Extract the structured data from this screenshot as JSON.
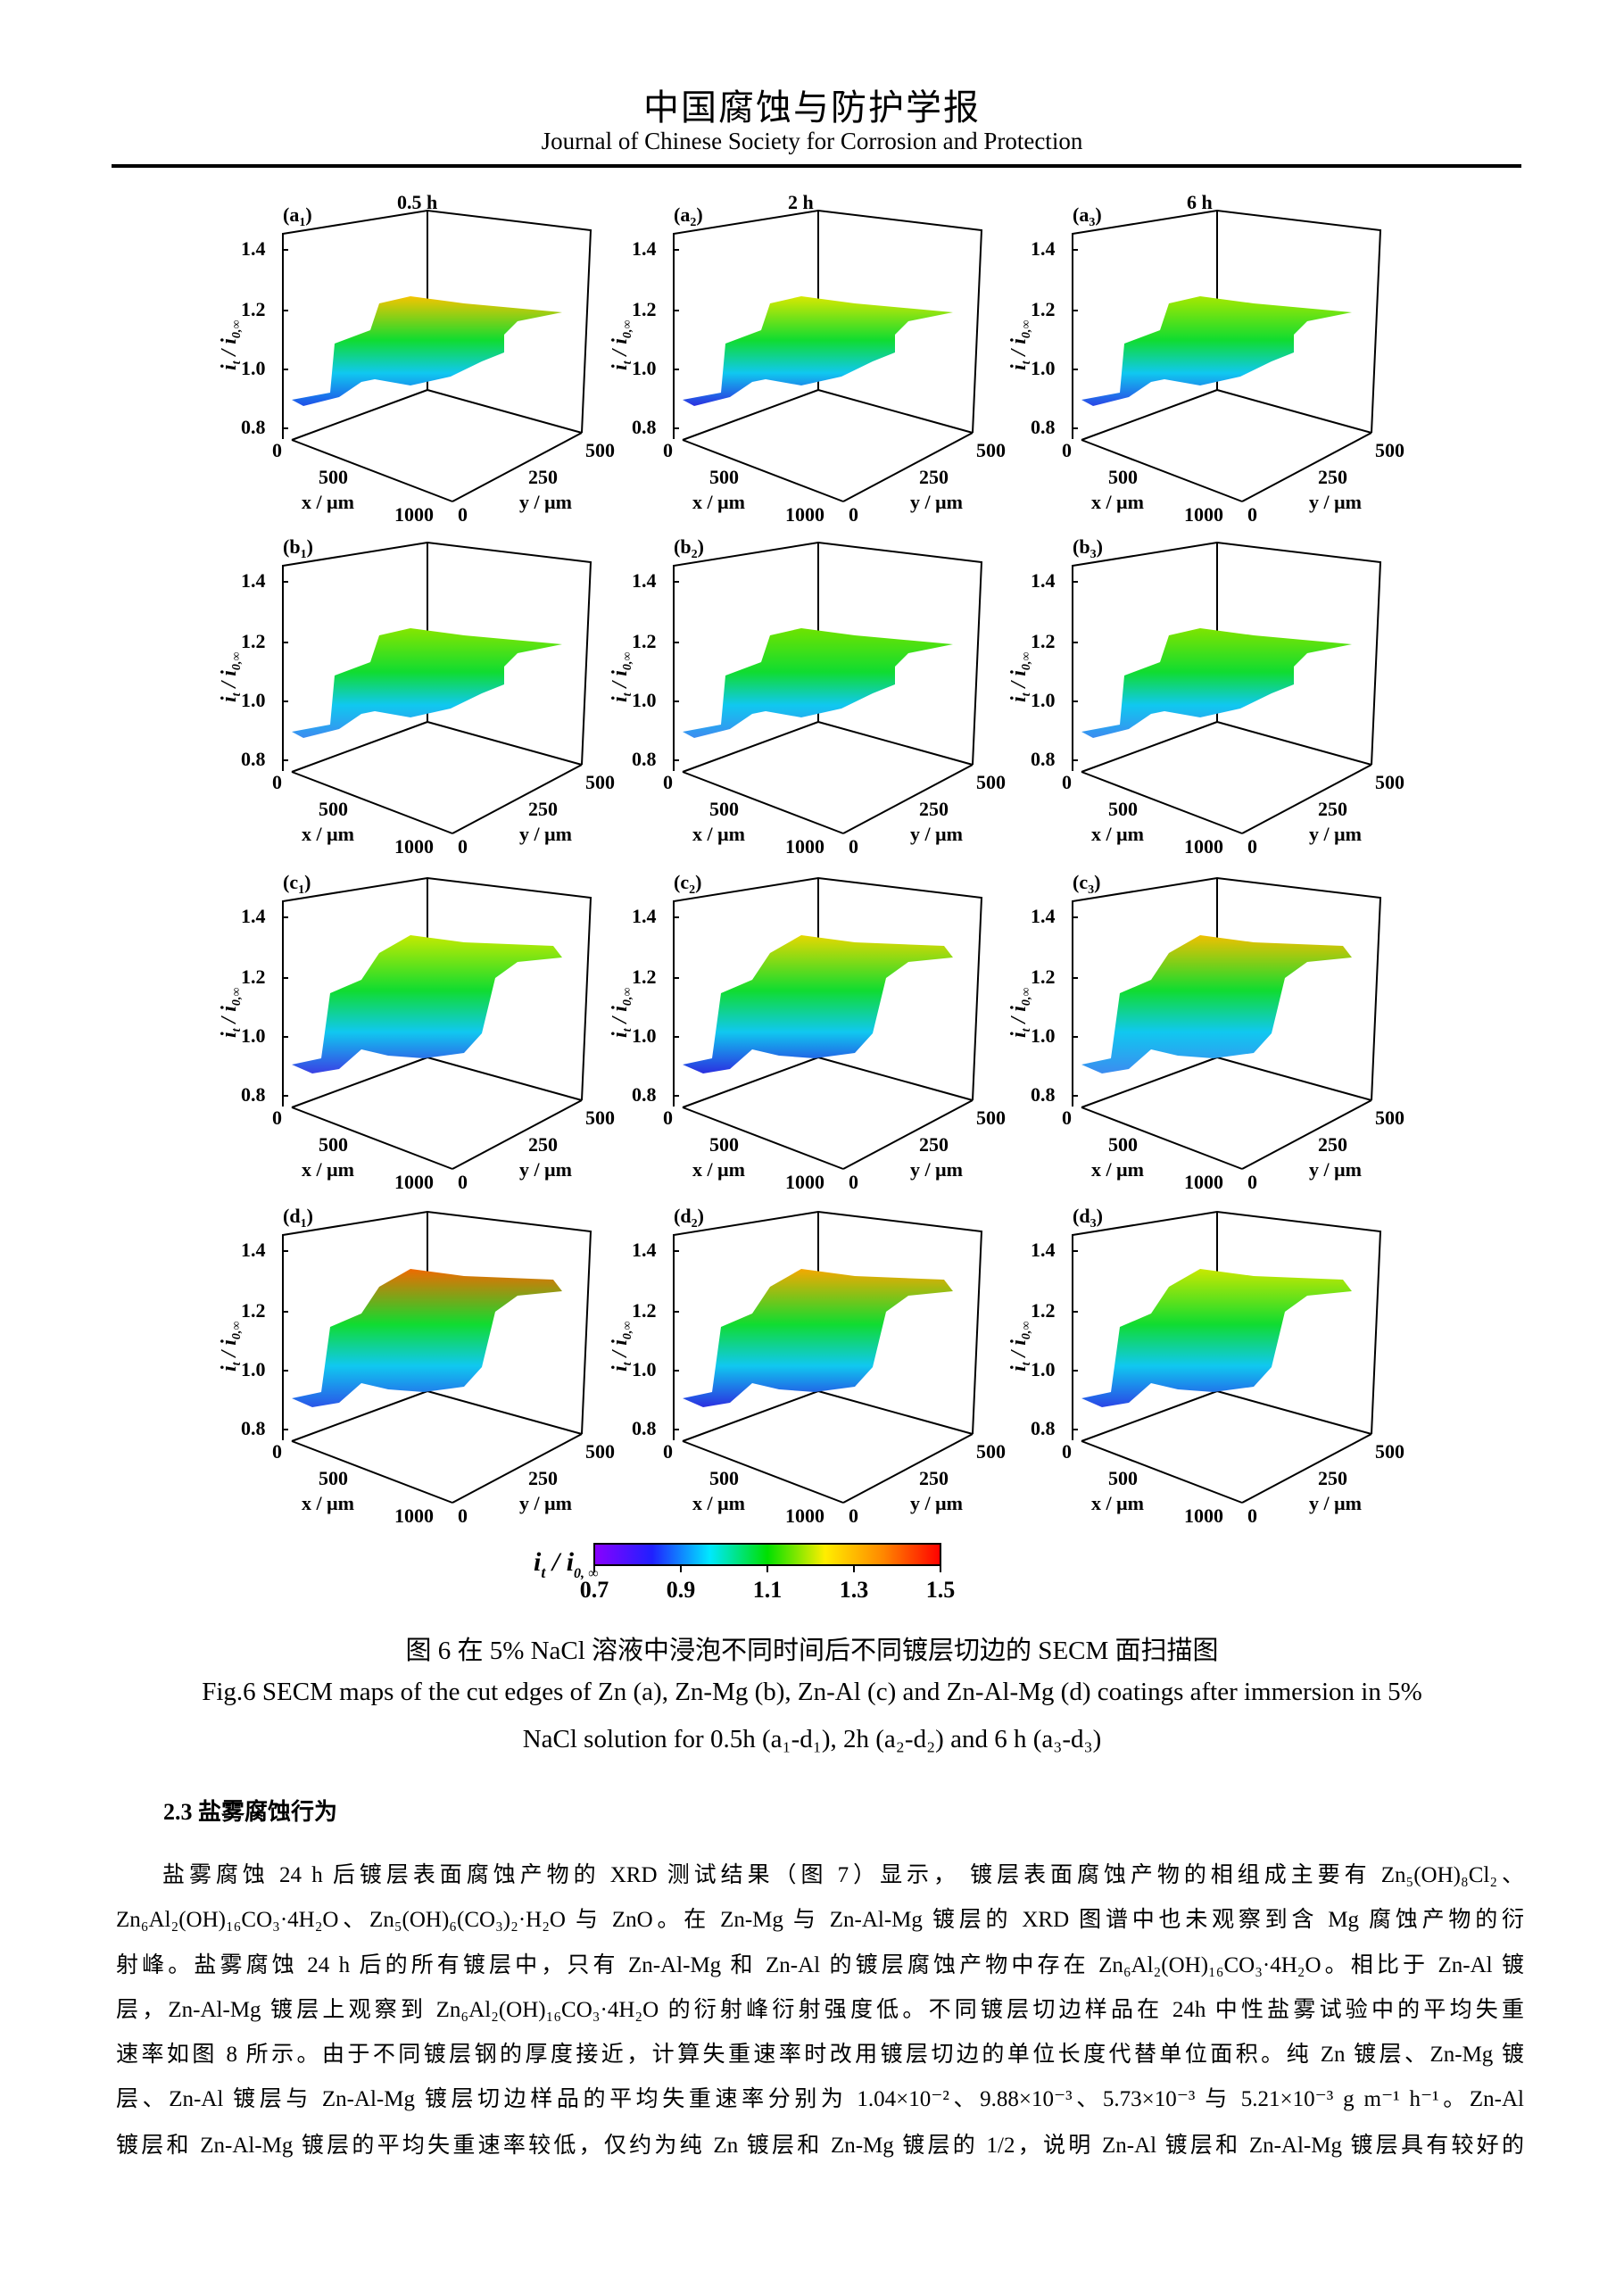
{
  "header": {
    "journal_cn": "中国腐蚀与防护学报",
    "journal_en": "Journal of Chinese Society for Corrosion and Protection"
  },
  "figure": {
    "panels": [
      {
        "label": "(a",
        "sub": "1",
        "time": "0.5 h",
        "peak": "#f5c400",
        "low": "#1f4fe8"
      },
      {
        "label": "(a",
        "sub": "2",
        "time": "2 h",
        "peak": "#d8e800",
        "low": "#2b2fe0"
      },
      {
        "label": "(a",
        "sub": "3",
        "time": "6 h",
        "peak": "#a6e800",
        "low": "#2a45e6"
      },
      {
        "label": "(b",
        "sub": "1",
        "time": "",
        "peak": "#86e600",
        "low": "#3c8cf0"
      },
      {
        "label": "(b",
        "sub": "2",
        "time": "",
        "peak": "#6fe300",
        "low": "#3c8cf0"
      },
      {
        "label": "(b",
        "sub": "3",
        "time": "",
        "peak": "#7fe400",
        "low": "#3c8cf0"
      },
      {
        "label": "(c",
        "sub": "1",
        "time": "",
        "peak": "#c4ea00",
        "low": "#3a40e4"
      },
      {
        "label": "(c",
        "sub": "2",
        "time": "",
        "peak": "#e6d800",
        "low": "#2b2fe0"
      },
      {
        "label": "(c",
        "sub": "3",
        "time": "",
        "peak": "#f0c000",
        "low": "#3c8cf0"
      },
      {
        "label": "(d",
        "sub": "1",
        "time": "",
        "peak": "#f06a00",
        "low": "#2a55e8"
      },
      {
        "label": "(d",
        "sub": "2",
        "time": "",
        "peak": "#f5a800",
        "low": "#2b2fe0"
      },
      {
        "label": "(d",
        "sub": "3",
        "time": "",
        "peak": "#c8e800",
        "low": "#2a45e6"
      }
    ],
    "z_ticks": [
      "1.4",
      "1.2",
      "1.0",
      "0.8"
    ],
    "z_label_main": "i",
    "z_label_sub1": "t",
    "z_label_mid": " / i",
    "z_label_sub2": "0,∞",
    "x_ticks": [
      "0",
      "500",
      "1000"
    ],
    "x_label": "x / μm",
    "y_ticks": [
      "0",
      "250",
      "500"
    ],
    "y_label": "y / μm",
    "colorbar": {
      "label_main": "i",
      "label_sub1": "t",
      "label_mid": " / i",
      "label_sub2": "0, ∞",
      "ticks": [
        "0.7",
        "0.9",
        "1.1",
        "1.3",
        "1.5"
      ],
      "colors": [
        "#8a00ff",
        "#2020ff",
        "#00e8ff",
        "#00e000",
        "#ffee00",
        "#ff8800",
        "#ff0000"
      ]
    },
    "caption_cn": "图 6 在 5% NaCl 溶液中浸泡不同时间后不同镀层切边的 SECM 面扫描图",
    "caption_en_1": "Fig.6 SECM maps of the cut edges of Zn (a), Zn-Mg (b), Zn-Al (c) and Zn-Al-Mg (d) coatings after immersion in 5%",
    "caption_en_2": "NaCl solution for 0.5h (a₁-d₁), 2h (a₂-d₂) and 6 h (a₃-d₃)"
  },
  "chart_data": {
    "type": "surface",
    "panels": [
      "a1",
      "a2",
      "a3",
      "b1",
      "b2",
      "b3",
      "c1",
      "c2",
      "c3",
      "d1",
      "d2",
      "d3"
    ],
    "rows": [
      "Zn (a)",
      "Zn-Mg (b)",
      "Zn-Al (c)",
      "Zn-Al-Mg (d)"
    ],
    "columns": [
      "0.5 h",
      "2 h",
      "6 h"
    ],
    "xlabel": "x / μm",
    "xlim": [
      0,
      1000
    ],
    "ylabel": "y / μm",
    "ylim": [
      0,
      500
    ],
    "zlabel": "i_t / i_0,∞",
    "zlim": [
      0.8,
      1.4
    ],
    "colorbar_range": [
      0.7,
      1.5
    ]
  },
  "section": {
    "heading": "2.3 盐雾腐蚀行为",
    "lines": [
      "盐雾腐蚀 24 h 后镀层表面腐蚀产物的 XRD 测试结果（图 7）显示， 镀层表面腐蚀产物的相组成主要有 Zn₅(OH)₈Cl₂、",
      "Zn₆Al₂(OH)₁₆CO₃·4H₂O、Zn₅(OH)₆(CO₃)₂·H₂O 与 ZnO。在 Zn-Mg 与 Zn-Al-Mg 镀层的 XRD 图谱中也未观察到含 Mg 腐蚀产物的衍",
      "射峰。盐雾腐蚀 24 h 后的所有镀层中，只有 Zn-Al-Mg 和 Zn-Al 的镀层腐蚀产物中存在 Zn₆Al₂(OH)₁₆CO₃·4H₂O。相比于 Zn-Al 镀",
      "层，Zn-Al-Mg 镀层上观察到 Zn₆Al₂(OH)₁₆CO₃·4H₂O 的衍射峰衍射强度低。不同镀层切边样品在 24h 中性盐雾试验中的平均失重",
      "速率如图 8 所示。由于不同镀层钢的厚度接近，计算失重速率时改用镀层切边的单位长度代替单位面积。纯 Zn 镀层、Zn-Mg 镀",
      "层、Zn-Al 镀层与 Zn-Al-Mg 镀层切边样品的平均失重速率分别为 1.04×10⁻²、9.88×10⁻³、5.73×10⁻³ 与 5.21×10⁻³ g m⁻¹ h⁻¹。Zn-Al",
      "镀层和 Zn-Al-Mg 镀层的平均失重速率较低，仅约为纯 Zn 镀层和 Zn-Mg 镀层的 1/2，说明 Zn-Al 镀层和 Zn-Al-Mg 镀层具有较好的"
    ]
  }
}
